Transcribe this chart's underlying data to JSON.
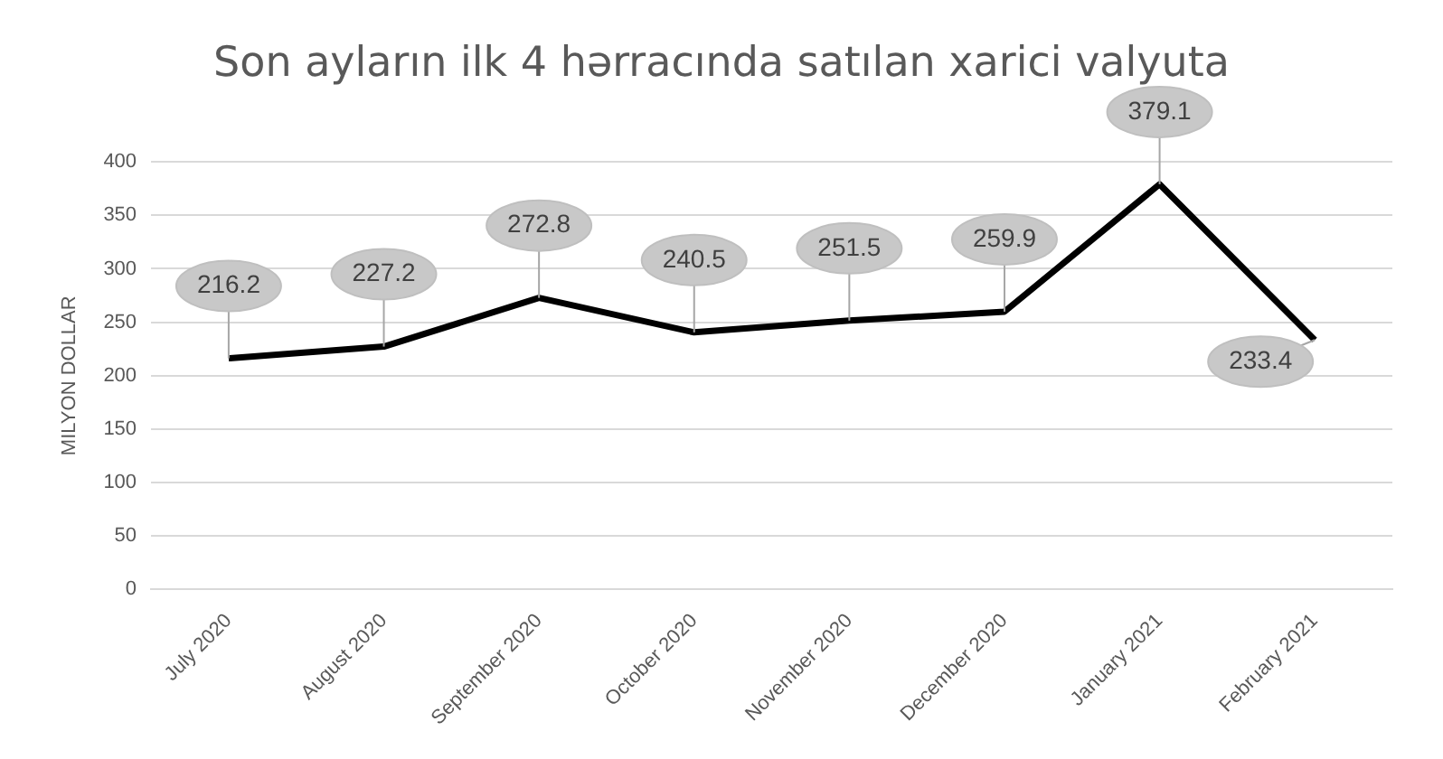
{
  "chart_data": {
    "type": "line",
    "title": "Son ayların ilk 4 hərracında satılan xarici valyuta",
    "ylabel": "MILYON DOLLAR",
    "categories": [
      "July 2020",
      "August 2020",
      "September 2020",
      "October 2020",
      "November 2020",
      "December 2020",
      "January 2021",
      "February 2021"
    ],
    "series": [
      {
        "color": "#000000",
        "values": [
          216.2,
          227.2,
          272.8,
          240.5,
          251.5,
          259.9,
          379.1,
          233.4
        ]
      }
    ],
    "ylim": [
      0,
      400
    ],
    "yticks": [
      0,
      50,
      100,
      150,
      200,
      250,
      300,
      350,
      400
    ],
    "grid": "y",
    "data_labels": true,
    "legend": false,
    "marker": "none",
    "line_style": "solid"
  }
}
